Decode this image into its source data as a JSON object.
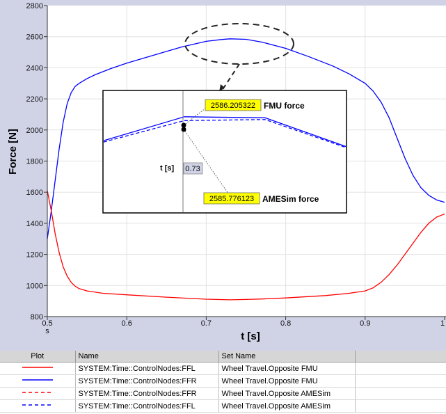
{
  "chart_data": {
    "type": "line",
    "xlabel": "t [s]",
    "ylabel": "Force [N]",
    "xlim": [
      0.5,
      1.0
    ],
    "ylim": [
      800,
      2800
    ],
    "x_ticks": [
      "0.5",
      "0.6",
      "0.7",
      "0.8",
      "0.9",
      "1"
    ],
    "x_tick_suffix": "s",
    "y_ticks": [
      "800",
      "1000",
      "1200",
      "1400",
      "1600",
      "1800",
      "2000",
      "2200",
      "2400",
      "2600",
      "2800"
    ],
    "grid": true,
    "series": [
      {
        "color": "#0000ff",
        "dash": "solid",
        "x": [
          0.5,
          0.505,
          0.51,
          0.515,
          0.52,
          0.525,
          0.53,
          0.535,
          0.54,
          0.55,
          0.56,
          0.57,
          0.58,
          0.6,
          0.62,
          0.65,
          0.67,
          0.7,
          0.72,
          0.73,
          0.75,
          0.77,
          0.8,
          0.83,
          0.86,
          0.88,
          0.9,
          0.91,
          0.92,
          0.93,
          0.94,
          0.95,
          0.96,
          0.97,
          0.98,
          0.99,
          1.0
        ],
        "y": [
          1300,
          1480,
          1680,
          1880,
          2050,
          2170,
          2240,
          2280,
          2300,
          2330,
          2355,
          2375,
          2395,
          2430,
          2460,
          2505,
          2535,
          2570,
          2582,
          2586,
          2583,
          2565,
          2525,
          2470,
          2410,
          2360,
          2300,
          2250,
          2180,
          2080,
          1950,
          1820,
          1710,
          1630,
          1580,
          1550,
          1535
        ]
      },
      {
        "color": "#ff0000",
        "dash": "solid",
        "x": [
          0.5,
          0.505,
          0.51,
          0.515,
          0.52,
          0.525,
          0.53,
          0.535,
          0.54,
          0.55,
          0.57,
          0.6,
          0.65,
          0.7,
          0.73,
          0.75,
          0.77,
          0.8,
          0.85,
          0.88,
          0.9,
          0.91,
          0.92,
          0.93,
          0.94,
          0.95,
          0.96,
          0.97,
          0.98,
          0.99,
          1.0
        ],
        "y": [
          1610,
          1480,
          1330,
          1210,
          1120,
          1060,
          1020,
          995,
          980,
          965,
          950,
          940,
          925,
          912,
          908,
          910,
          913,
          920,
          935,
          950,
          965,
          985,
          1020,
          1070,
          1130,
          1200,
          1270,
          1340,
          1400,
          1440,
          1460
        ]
      }
    ],
    "inset": {
      "series": [
        {
          "color": "#0000ff",
          "dash": "solid",
          "x": [
            0.57,
            0.67,
            0.77,
            0.87
          ],
          "y": [
            2517,
            2586,
            2583,
            2500
          ]
        },
        {
          "color": "#0000ff",
          "dash": "dashed",
          "x": [
            0.57,
            0.67,
            0.77,
            0.87
          ],
          "y": [
            2513,
            2575,
            2578,
            2497
          ]
        }
      ],
      "fmu_value": "2586.205322",
      "fmu_label": "FMU force",
      "amesim_value": "2585.776123",
      "amesim_label": "AMESim force",
      "t_label": "t [s]",
      "t_value": "0.73",
      "highlight_color": "#ffff00"
    }
  },
  "legend_table": {
    "headers": [
      "Plot",
      "Name",
      "Set Name"
    ],
    "rows": [
      {
        "color": "#ff0000",
        "dash": "solid",
        "name": "SYSTEM:Time::ControlNodes:FFL",
        "set": "Wheel Travel.Opposite FMU"
      },
      {
        "color": "#0000ff",
        "dash": "solid",
        "name": "SYSTEM:Time::ControlNodes:FFR",
        "set": "Wheel Travel.Opposite FMU"
      },
      {
        "color": "#ff0000",
        "dash": "dashed",
        "name": "SYSTEM:Time::ControlNodes:FFR",
        "set": "Wheel Travel.Opposite AMESim"
      },
      {
        "color": "#0000ff",
        "dash": "dashed",
        "name": "SYSTEM:Time::ControlNodes:FFL",
        "set": "Wheel Travel.Opposite AMESim"
      }
    ]
  }
}
